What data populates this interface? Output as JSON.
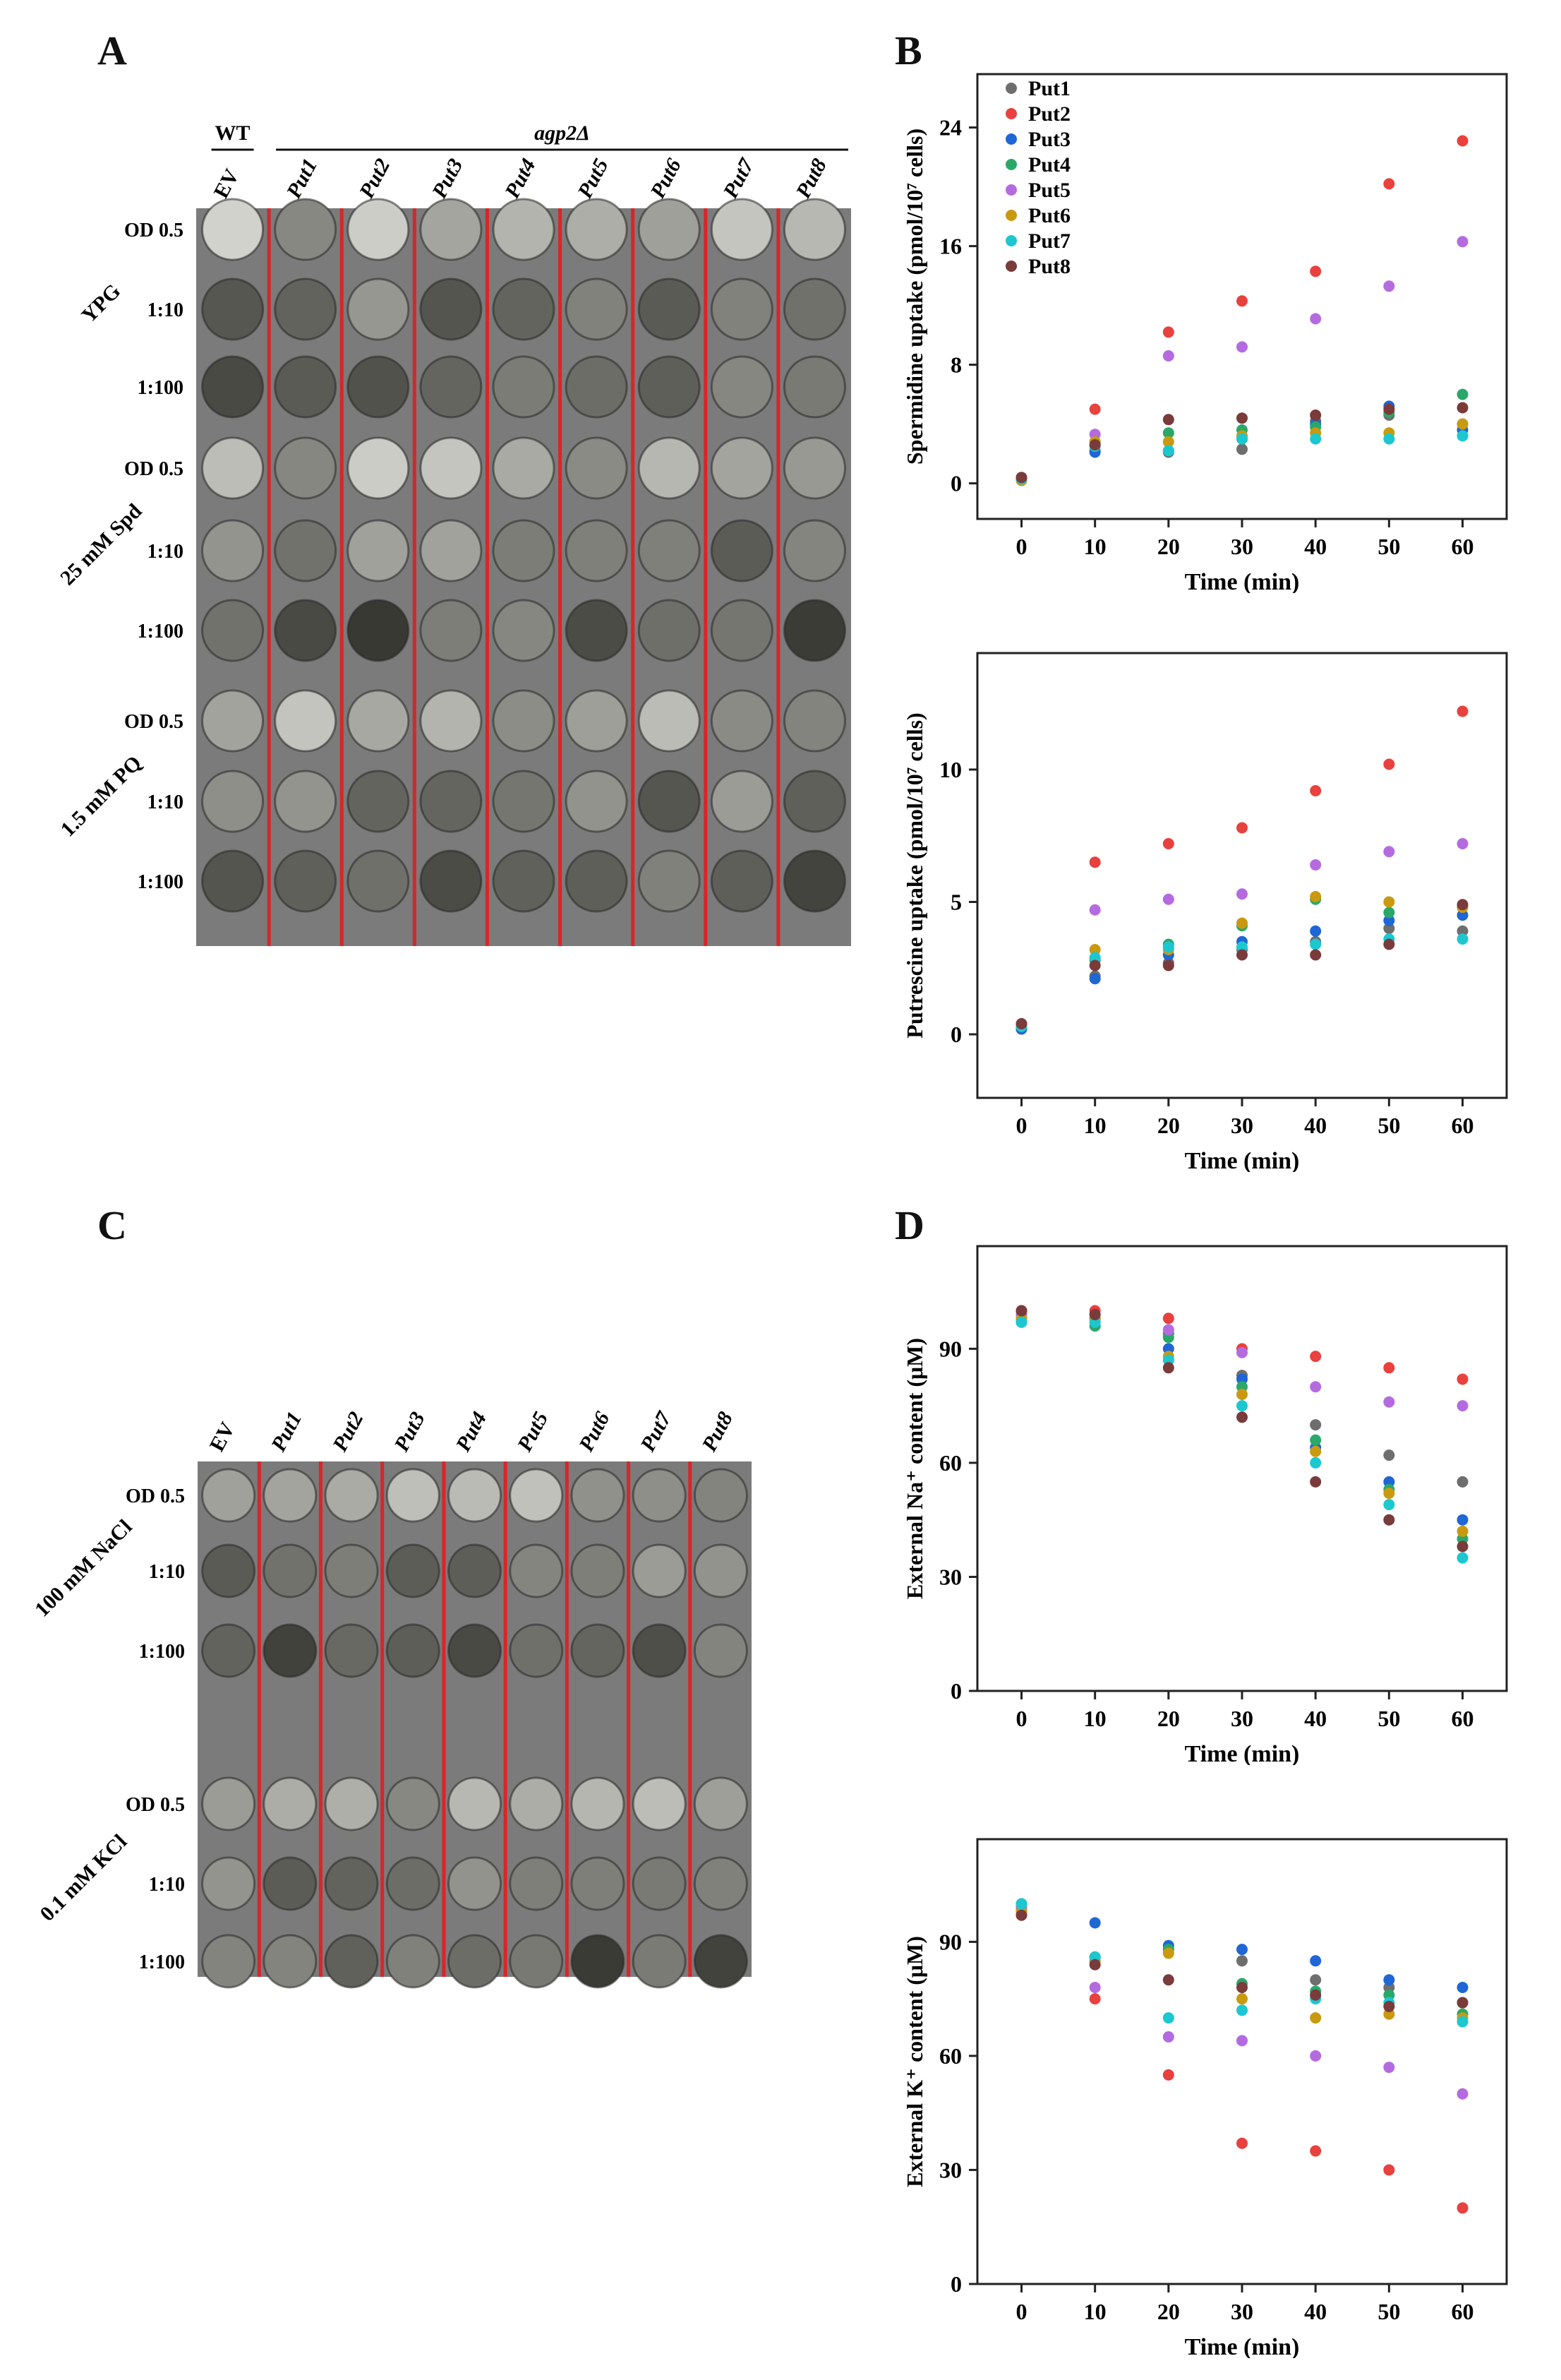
{
  "colors": {
    "Put1": "#6e6e6e",
    "Put2": "#e8413e",
    "Put3": "#1f66d6",
    "Put4": "#2aa86a",
    "Put5": "#b46be0",
    "Put6": "#c99a10",
    "Put7": "#1cc7d0",
    "Put8": "#7a3b3b",
    "plate_bg": "#7b7b7b",
    "lane_line": "#d8262a"
  },
  "panels": {
    "A": "A",
    "B": "B",
    "C": "C",
    "D": "D"
  },
  "plateA": {
    "wt_label": "WT",
    "mut_label": "agp2Δ",
    "columns": [
      "EV",
      "Put1",
      "Put2",
      "Put3",
      "Put4",
      "Put5",
      "Put6",
      "Put7",
      "Put8"
    ],
    "groups": [
      {
        "label": "YPG",
        "rows": [
          "OD 0.5",
          "1:10",
          "1:100"
        ]
      },
      {
        "label": "25 mM Spd",
        "rows": [
          "OD 0.5",
          "1:10",
          "1:100"
        ]
      },
      {
        "label": "1.5 mM PQ",
        "rows": [
          "OD 0.5",
          "1:10",
          "1:100"
        ]
      }
    ]
  },
  "plateC": {
    "columns": [
      "EV",
      "Put1",
      "Put2",
      "Put3",
      "Put4",
      "Put5",
      "Put6",
      "Put7",
      "Put8"
    ],
    "groups": [
      {
        "label": "100 mM NaCl",
        "rows": [
          "OD 0.5",
          "1:10",
          "1:100"
        ]
      },
      {
        "label": "0.1 mM KCl",
        "rows": [
          "OD 0.5",
          "1:10",
          "1:100"
        ]
      }
    ]
  },
  "chart_data": [
    {
      "type": "scatter",
      "panel": "B",
      "ylabel": "Spermidine uptake (pmol/10⁷ cells)",
      "xlabel": "Time (min)",
      "x": [
        0,
        10,
        20,
        30,
        40,
        50,
        60
      ],
      "xlim": [
        -6,
        66
      ],
      "ylim": [
        -2.4,
        27.6
      ],
      "yticks": [
        0,
        8,
        16,
        24
      ],
      "legend": [
        "Put1",
        "Put2",
        "Put3",
        "Put4",
        "Put5",
        "Put6",
        "Put7",
        "Put8"
      ],
      "series": [
        {
          "name": "Put1",
          "values": [
            0.3,
            2.2,
            2.1,
            2.3,
            4.2,
            4.6,
            4.0
          ]
        },
        {
          "name": "Put2",
          "values": [
            0.3,
            5.0,
            10.2,
            12.3,
            14.3,
            20.2,
            23.1
          ]
        },
        {
          "name": "Put3",
          "values": [
            0.2,
            2.1,
            2.2,
            3.0,
            4.0,
            5.2,
            3.6
          ]
        },
        {
          "name": "Put4",
          "values": [
            0.3,
            2.8,
            3.4,
            3.6,
            3.8,
            4.8,
            6.0
          ]
        },
        {
          "name": "Put5",
          "values": [
            0.3,
            3.3,
            8.6,
            9.2,
            11.1,
            13.3,
            16.3
          ]
        },
        {
          "name": "Put6",
          "values": [
            0.2,
            2.8,
            2.8,
            3.2,
            3.4,
            3.4,
            4.0
          ]
        },
        {
          "name": "Put7",
          "values": [
            0.3,
            2.5,
            2.2,
            3.0,
            3.0,
            3.0,
            3.2
          ]
        },
        {
          "name": "Put8",
          "values": [
            0.4,
            2.6,
            4.3,
            4.4,
            4.6,
            5.0,
            5.1
          ]
        }
      ]
    },
    {
      "type": "scatter",
      "panel": "B",
      "ylabel": "Putrescine uptake (pmol/10⁷ cells)",
      "xlabel": "Time (min)",
      "x": [
        0,
        10,
        20,
        30,
        40,
        50,
        60
      ],
      "xlim": [
        -6,
        66
      ],
      "ylim": [
        -2.4,
        14.4
      ],
      "yticks": [
        0,
        5,
        10
      ],
      "series": [
        {
          "name": "Put1",
          "values": [
            0.2,
            2.2,
            2.7,
            3.2,
            3.5,
            4.0,
            3.9
          ]
        },
        {
          "name": "Put2",
          "values": [
            0.3,
            6.5,
            7.2,
            7.8,
            9.2,
            10.2,
            12.2
          ]
        },
        {
          "name": "Put3",
          "values": [
            0.2,
            2.1,
            3.0,
            3.5,
            3.9,
            4.3,
            4.5
          ]
        },
        {
          "name": "Put4",
          "values": [
            0.3,
            2.8,
            3.4,
            4.1,
            5.1,
            4.6,
            4.8
          ]
        },
        {
          "name": "Put5",
          "values": [
            0.4,
            4.7,
            5.1,
            5.3,
            6.4,
            6.9,
            7.2
          ]
        },
        {
          "name": "Put6",
          "values": [
            0.3,
            3.2,
            3.2,
            4.2,
            5.2,
            5.0,
            4.8
          ]
        },
        {
          "name": "Put7",
          "values": [
            0.3,
            2.9,
            3.3,
            3.3,
            3.4,
            3.6,
            3.6
          ]
        },
        {
          "name": "Put8",
          "values": [
            0.4,
            2.6,
            2.6,
            3.0,
            3.0,
            3.4,
            4.9
          ]
        }
      ]
    },
    {
      "type": "scatter",
      "panel": "D",
      "ylabel": "External Na⁺ content (μM)",
      "xlabel": "Time (min)",
      "x": [
        0,
        10,
        20,
        30,
        40,
        50,
        60
      ],
      "xlim": [
        -6,
        66
      ],
      "ylim": [
        0,
        117
      ],
      "yticks": [
        0,
        30,
        60,
        90
      ],
      "series": [
        {
          "name": "Put1",
          "values": [
            98,
            98,
            94,
            83,
            70,
            62,
            55
          ]
        },
        {
          "name": "Put2",
          "values": [
            100,
            100,
            98,
            90,
            88,
            85,
            82
          ]
        },
        {
          "name": "Put3",
          "values": [
            97,
            98,
            90,
            82,
            64,
            55,
            45
          ]
        },
        {
          "name": "Put4",
          "values": [
            99,
            96,
            93,
            80,
            66,
            53,
            40
          ]
        },
        {
          "name": "Put5",
          "values": [
            99,
            98,
            95,
            89,
            80,
            76,
            75
          ]
        },
        {
          "name": "Put6",
          "values": [
            98,
            98,
            88,
            78,
            63,
            52,
            42
          ]
        },
        {
          "name": "Put7",
          "values": [
            97,
            97,
            87,
            75,
            60,
            49,
            35
          ]
        },
        {
          "name": "Put8",
          "values": [
            100,
            99,
            85,
            72,
            55,
            45,
            38
          ]
        }
      ]
    },
    {
      "type": "scatter",
      "panel": "D",
      "ylabel": "External K⁺ content (μM)",
      "xlabel": "Time (min)",
      "x": [
        0,
        10,
        20,
        30,
        40,
        50,
        60
      ],
      "xlim": [
        -6,
        66
      ],
      "ylim": [
        0,
        117
      ],
      "yticks": [
        0,
        30,
        60,
        90
      ],
      "series": [
        {
          "name": "Put1",
          "values": [
            99,
            86,
            88,
            85,
            80,
            78,
            74
          ]
        },
        {
          "name": "Put2",
          "values": [
            98,
            75,
            55,
            37,
            35,
            30,
            20
          ]
        },
        {
          "name": "Put3",
          "values": [
            100,
            95,
            89,
            88,
            85,
            80,
            78
          ]
        },
        {
          "name": "Put4",
          "values": [
            99,
            86,
            88,
            79,
            77,
            76,
            71
          ]
        },
        {
          "name": "Put5",
          "values": [
            99,
            78,
            65,
            64,
            60,
            57,
            50
          ]
        },
        {
          "name": "Put6",
          "values": [
            98,
            85,
            87,
            75,
            70,
            71,
            70
          ]
        },
        {
          "name": "Put7",
          "values": [
            100,
            86,
            70,
            72,
            75,
            74,
            69
          ]
        },
        {
          "name": "Put8",
          "values": [
            97,
            84,
            80,
            78,
            76,
            73,
            74
          ]
        }
      ]
    }
  ]
}
